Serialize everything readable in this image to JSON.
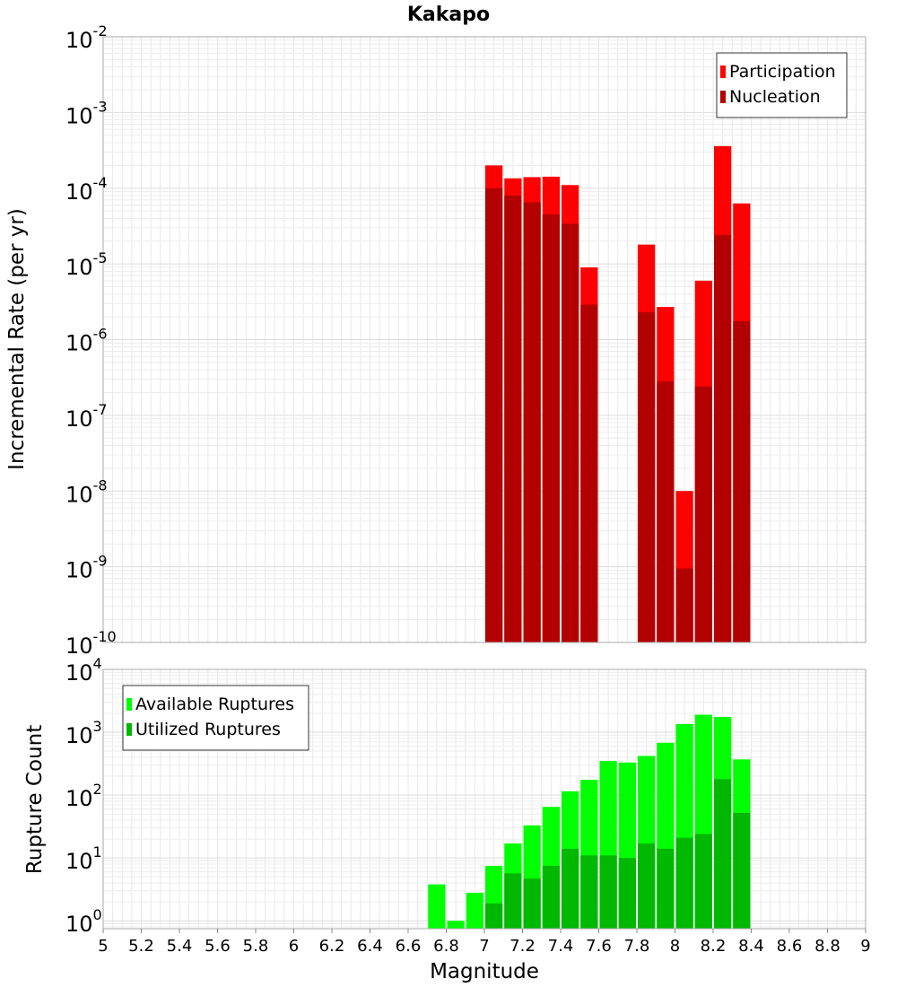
{
  "chart_data": [
    {
      "type": "bar",
      "title": "Kakapo",
      "ylabel": "Incremental Rate (per yr)",
      "xlabel": "",
      "yscale": "log",
      "ylim": [
        1e-10,
        0.01
      ],
      "xlim": [
        5,
        9
      ],
      "grid": true,
      "legend_position": "top-right",
      "bin_width": 0.1,
      "x": [
        7.05,
        7.15,
        7.25,
        7.35,
        7.45,
        7.55,
        7.85,
        7.95,
        8.05,
        8.15,
        8.25,
        8.35
      ],
      "series": [
        {
          "name": "Participation",
          "color": "#ff0000",
          "values": [
            0.0002,
            0.000135,
            0.00014,
            0.000142,
            0.00011,
            9e-06,
            1.8e-05,
            2.7e-06,
            1e-08,
            6e-06,
            0.00036,
            6.3e-05
          ]
        },
        {
          "name": "Nucleation",
          "color": "#b30000",
          "values": [
            0.0001,
            8e-05,
            6.5e-05,
            4.5e-05,
            3.4e-05,
            2.9e-06,
            2.3e-06,
            2.8e-07,
            9.5e-10,
            2.4e-07,
            2.4e-05,
            1.75e-06
          ]
        }
      ],
      "ytick_exponents": [
        -10,
        -9,
        -8,
        -7,
        -6,
        -5,
        -4,
        -3,
        -2
      ]
    },
    {
      "type": "bar",
      "title": "",
      "ylabel": "Rupture Count",
      "xlabel": "Magnitude",
      "yscale": "log",
      "ylim": [
        0.75,
        10000
      ],
      "xlim": [
        5,
        9
      ],
      "grid": true,
      "legend_position": "top-left",
      "bin_width": 0.1,
      "x": [
        6.75,
        6.85,
        6.95,
        7.05,
        7.15,
        7.25,
        7.35,
        7.45,
        7.55,
        7.65,
        7.75,
        7.85,
        7.95,
        8.05,
        8.15,
        8.25,
        8.35
      ],
      "series": [
        {
          "name": "Available Ruptures",
          "color": "#00ff00",
          "values": [
            3.8,
            1,
            2.8,
            7.5,
            17,
            33,
            65,
            115,
            175,
            350,
            330,
            420,
            680,
            1350,
            1900,
            1750,
            370
          ]
        },
        {
          "name": "Utilized Ruptures",
          "color": "#00b800",
          "values": [
            null,
            null,
            null,
            1.9,
            5.7,
            4.7,
            7.5,
            14,
            11,
            11,
            10,
            17,
            14,
            21,
            24,
            180,
            52
          ]
        }
      ],
      "ytick_exponents": [
        0,
        1,
        2,
        3,
        4
      ]
    }
  ],
  "xticks": [
    "5",
    "5.2",
    "5.4",
    "5.6",
    "5.8",
    "6",
    "6.2",
    "6.4",
    "6.6",
    "6.8",
    "7",
    "7.2",
    "7.4",
    "7.6",
    "7.8",
    "8",
    "8.2",
    "8.4",
    "8.6",
    "8.8",
    "9"
  ]
}
